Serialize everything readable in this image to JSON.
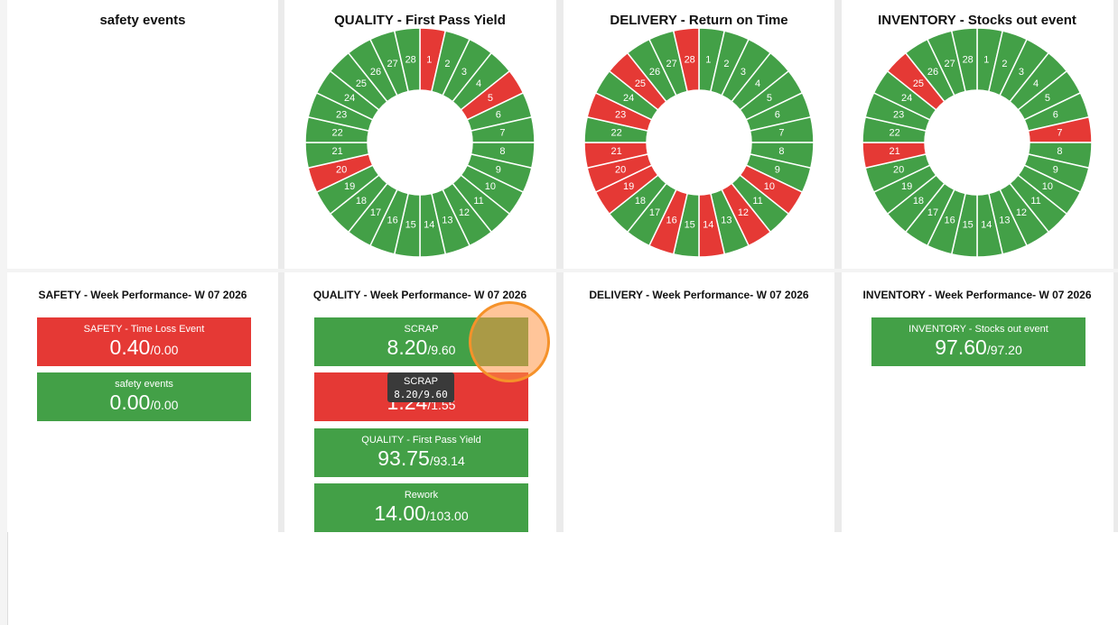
{
  "top_panels": [
    {
      "title": "safety events"
    },
    {
      "title": "QUALITY - First Pass Yield",
      "segments": {
        "labels": [
          1,
          2,
          3,
          4,
          5,
          6,
          7,
          8,
          9,
          10,
          11,
          12,
          13,
          14,
          15,
          16,
          17,
          18,
          19,
          20,
          21,
          22,
          23,
          24,
          25,
          26,
          27,
          28
        ],
        "colors": [
          "#e53935",
          "#43a047",
          "#43a047",
          "#43a047",
          "#e53935",
          "#43a047",
          "#43a047",
          "#43a047",
          "#43a047",
          "#43a047",
          "#43a047",
          "#43a047",
          "#43a047",
          "#43a047",
          "#43a047",
          "#43a047",
          "#43a047",
          "#43a047",
          "#43a047",
          "#e53935",
          "#43a047",
          "#43a047",
          "#43a047",
          "#43a047",
          "#43a047",
          "#43a047",
          "#43a047",
          "#43a047"
        ]
      }
    },
    {
      "title": "DELIVERY - Return on Time",
      "segments": {
        "labels": [
          1,
          2,
          3,
          4,
          5,
          6,
          7,
          8,
          9,
          10,
          11,
          12,
          13,
          14,
          15,
          16,
          17,
          18,
          19,
          20,
          21,
          22,
          23,
          24,
          25,
          26,
          27,
          28
        ],
        "colors": [
          "#43a047",
          "#43a047",
          "#43a047",
          "#43a047",
          "#43a047",
          "#43a047",
          "#43a047",
          "#43a047",
          "#43a047",
          "#e53935",
          "#43a047",
          "#e53935",
          "#43a047",
          "#e53935",
          "#43a047",
          "#e53935",
          "#43a047",
          "#43a047",
          "#e53935",
          "#e53935",
          "#e53935",
          "#43a047",
          "#e53935",
          "#43a047",
          "#e53935",
          "#43a047",
          "#43a047",
          "#e53935"
        ]
      }
    },
    {
      "title": "INVENTORY - Stocks out event",
      "segments": {
        "labels": [
          1,
          2,
          3,
          4,
          5,
          6,
          7,
          8,
          9,
          10,
          11,
          12,
          13,
          14,
          15,
          16,
          17,
          18,
          19,
          20,
          21,
          22,
          23,
          24,
          25,
          26,
          27,
          28
        ],
        "colors": [
          "#43a047",
          "#43a047",
          "#43a047",
          "#43a047",
          "#43a047",
          "#43a047",
          "#e53935",
          "#43a047",
          "#43a047",
          "#43a047",
          "#43a047",
          "#43a047",
          "#43a047",
          "#43a047",
          "#43a047",
          "#43a047",
          "#43a047",
          "#43a047",
          "#43a047",
          "#43a047",
          "#e53935",
          "#43a047",
          "#43a047",
          "#43a047",
          "#e53935",
          "#43a047",
          "#43a047",
          "#43a047"
        ]
      }
    }
  ],
  "bottom_panels": [
    {
      "title": "SAFETY - Week Performance- W 07 2026",
      "cards": [
        {
          "name": "SAFETY - Time Loss Event",
          "value": "0.40",
          "target": "/0.00",
          "color": "#e53935"
        },
        {
          "name": "safety events",
          "value": "0.00",
          "target": "/0.00",
          "color": "#43a047"
        }
      ]
    },
    {
      "title": "QUALITY - Week Performance- W 07 2026",
      "cards": [
        {
          "name": "SCRAP",
          "value": "8.20",
          "target": "/9.60",
          "color": "#43a047"
        },
        {
          "value": "1.24",
          "target": "/1.55",
          "color": "#e53935"
        },
        {
          "name": "QUALITY - First Pass Yield",
          "value": "93.75",
          "target": "/93.14",
          "color": "#43a047"
        },
        {
          "name": "Rework",
          "value": "14.00",
          "target": "/103.00",
          "color": "#43a047"
        }
      ]
    },
    {
      "title": "DELIVERY - Week Performance- W 07 2026"
    },
    {
      "title": "INVENTORY - Week Performance- W 07 2026",
      "cards": [
        {
          "name": "INVENTORY - Stocks out event",
          "value": "97.60",
          "target": "/97.20",
          "color": "#43a047"
        }
      ]
    }
  ],
  "tooltip": {
    "title": "SCRAP",
    "text": "8.20/9.60"
  }
}
